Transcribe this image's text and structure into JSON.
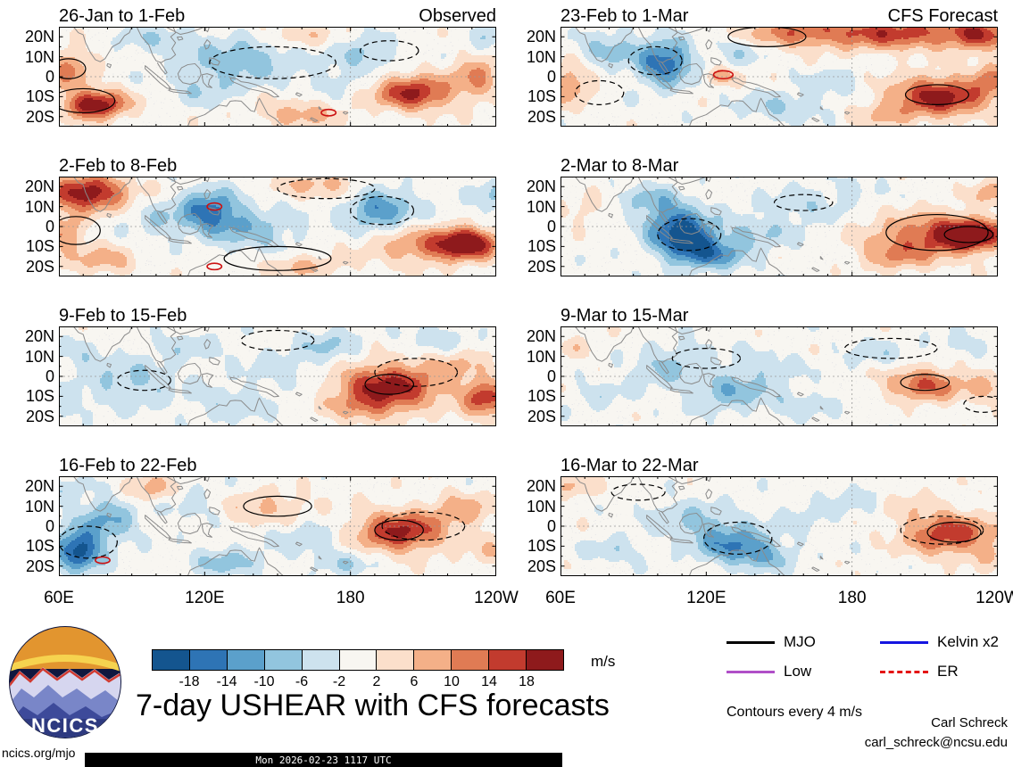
{
  "chart_data": {
    "type": "heatmap",
    "title": "7-day USHEAR with CFS forecasts",
    "units": "m/s",
    "contours_note": "Contours every 4 m/s",
    "column_headings": [
      "Observed",
      "CFS Forecast"
    ],
    "lat_ticks": [
      "20N",
      "10N",
      "0",
      "10S",
      "20S"
    ],
    "lat_values": [
      20,
      10,
      0,
      -10,
      -20
    ],
    "lon_ticks": [
      "60E",
      "120E",
      "180",
      "120W"
    ],
    "lon_values": [
      60,
      120,
      180,
      240
    ],
    "lon_range": [
      60,
      240
    ],
    "lat_range": [
      -25,
      25
    ],
    "colorbar": {
      "levels": [
        -18,
        -14,
        -10,
        -6,
        -2,
        2,
        6,
        10,
        14,
        18
      ],
      "labels": [
        "-18",
        "-14",
        "-10",
        "-6",
        "-2",
        "2",
        "6",
        "10",
        "14",
        "18"
      ],
      "colors": [
        "#14558f",
        "#2e74b5",
        "#5ba0cb",
        "#92c5de",
        "#cde2ee",
        "#f8f6f1",
        "#fbdfcb",
        "#f4b088",
        "#e07b54",
        "#c23b2e",
        "#8e1a1c"
      ]
    },
    "legend": [
      {
        "label": "MJO",
        "color": "#000000",
        "dash": false
      },
      {
        "label": "Kelvin x2",
        "color": "#1515e0",
        "dash": false
      },
      {
        "label": "Low",
        "color": "#b04fc8",
        "dash": false
      },
      {
        "label": "ER",
        "color": "#e41414",
        "dash": true
      }
    ],
    "panels": [
      {
        "title": "26-Jan to 1-Feb",
        "features": [
          [
            75,
            -14,
            9,
            5,
            22
          ],
          [
            64,
            4,
            7,
            7,
            11
          ],
          [
            100,
            19,
            12,
            5,
            -5
          ],
          [
            136,
            9,
            16,
            8,
            -9
          ],
          [
            120,
            -6,
            10,
            6,
            -5
          ],
          [
            158,
            -19,
            12,
            5,
            8
          ],
          [
            157,
            21,
            12,
            5,
            6
          ],
          [
            186,
            12,
            9,
            6,
            -7
          ],
          [
            206,
            -8,
            11,
            6,
            19
          ],
          [
            232,
            0,
            7,
            8,
            10
          ],
          [
            236,
            20,
            6,
            5,
            -6
          ],
          [
            175,
            -2,
            8,
            5,
            -4
          ]
        ],
        "contours": [
          [
            148,
            7,
            26,
            8,
            1,
            "k"
          ],
          [
            196,
            13,
            12,
            5,
            1,
            "k"
          ],
          [
            70,
            -12,
            13,
            6,
            0,
            "k"
          ],
          [
            64,
            4,
            7,
            5,
            0,
            "k"
          ],
          [
            171,
            -18,
            3,
            1.6,
            0,
            "r"
          ]
        ]
      },
      {
        "title": "2-Feb to 8-Feb",
        "features": [
          [
            72,
            17,
            11,
            6,
            22
          ],
          [
            62,
            -3,
            6,
            7,
            10
          ],
          [
            78,
            -17,
            10,
            5,
            8
          ],
          [
            122,
            8,
            9,
            7,
            -16
          ],
          [
            140,
            -2,
            13,
            7,
            -8
          ],
          [
            100,
            2,
            8,
            6,
            -5
          ],
          [
            162,
            22,
            11,
            4,
            6
          ],
          [
            177,
            17,
            9,
            5,
            5
          ],
          [
            191,
            9,
            10,
            7,
            -14
          ],
          [
            213,
            -10,
            16,
            6,
            12
          ],
          [
            228,
            -8,
            8,
            5,
            20
          ],
          [
            160,
            -20,
            12,
            4,
            7
          ],
          [
            238,
            14,
            6,
            6,
            -6
          ]
        ],
        "contours": [
          [
            67,
            -2,
            10,
            7,
            0,
            "k"
          ],
          [
            170,
            19,
            20,
            5,
            1,
            "k"
          ],
          [
            193,
            8,
            13,
            7,
            1,
            "k"
          ],
          [
            150,
            -16,
            22,
            6,
            0,
            "k"
          ],
          [
            124,
            10,
            3,
            1.8,
            0,
            "r"
          ],
          [
            124,
            -20,
            3,
            1.6,
            0,
            "r"
          ]
        ]
      },
      {
        "title": "9-Feb to 15-Feb",
        "features": [
          [
            90,
            -4,
            13,
            8,
            -7
          ],
          [
            70,
            9,
            9,
            6,
            -4
          ],
          [
            112,
            14,
            11,
            6,
            -4
          ],
          [
            130,
            -14,
            12,
            6,
            -5
          ],
          [
            152,
            4,
            12,
            8,
            -4
          ],
          [
            172,
            16,
            9,
            6,
            -6
          ],
          [
            196,
            -5,
            15,
            8,
            20
          ],
          [
            186,
            -16,
            10,
            5,
            7
          ],
          [
            226,
            6,
            9,
            6,
            6
          ],
          [
            236,
            -11,
            7,
            6,
            17
          ],
          [
            216,
            19,
            10,
            5,
            -5
          ],
          [
            62,
            -16,
            7,
            5,
            -4
          ]
        ],
        "contours": [
          [
            207,
            2,
            17,
            7,
            1,
            "k"
          ],
          [
            196,
            -4,
            10,
            5,
            0,
            "k"
          ],
          [
            150,
            18,
            15,
            5,
            1,
            "k"
          ],
          [
            95,
            -2,
            11,
            5,
            1,
            "k"
          ]
        ]
      },
      {
        "title": "16-Feb to 22-Feb",
        "features": [
          [
            68,
            -12,
            7,
            7,
            -20
          ],
          [
            80,
            4,
            9,
            8,
            -10
          ],
          [
            98,
            18,
            8,
            5,
            8
          ],
          [
            115,
            11,
            9,
            6,
            -5
          ],
          [
            129,
            -18,
            10,
            5,
            -8
          ],
          [
            146,
            9,
            14,
            6,
            7
          ],
          [
            162,
            -4,
            11,
            7,
            -5
          ],
          [
            200,
            -3,
            13,
            7,
            19
          ],
          [
            226,
            8,
            10,
            6,
            8
          ],
          [
            178,
            -18,
            10,
            5,
            -5
          ],
          [
            238,
            -14,
            7,
            5,
            6
          ],
          [
            62,
            18,
            5,
            4,
            -6
          ]
        ],
        "contours": [
          [
            72,
            -8,
            12,
            8,
            1,
            "k"
          ],
          [
            210,
            0,
            17,
            7,
            1,
            "k"
          ],
          [
            200,
            -2,
            10,
            5,
            0,
            "k"
          ],
          [
            150,
            10,
            14,
            5,
            0,
            "k"
          ],
          [
            78,
            -17,
            3,
            1.6,
            0,
            "r"
          ]
        ]
      },
      {
        "title": "23-Feb to 1-Mar",
        "features": [
          [
            197,
            22,
            28,
            6,
            16
          ],
          [
            152,
            22,
            14,
            5,
            8
          ],
          [
            232,
            21,
            8,
            5,
            12
          ],
          [
            103,
            7,
            8,
            8,
            -17
          ],
          [
            80,
            14,
            8,
            6,
            -8
          ],
          [
            64,
            -4,
            6,
            7,
            10
          ],
          [
            126,
            0,
            5,
            3,
            9
          ],
          [
            150,
            -15,
            12,
            5,
            -6
          ],
          [
            172,
            -4,
            9,
            6,
            -4
          ],
          [
            216,
            -10,
            14,
            7,
            20
          ],
          [
            238,
            -1,
            6,
            6,
            10
          ],
          [
            135,
            14,
            7,
            5,
            -6
          ],
          [
            192,
            -19,
            9,
            4,
            6
          ]
        ],
        "contours": [
          [
            99,
            8,
            11,
            7,
            1,
            "k"
          ],
          [
            145,
            20,
            16,
            5,
            0,
            "k"
          ],
          [
            127,
            1,
            4,
            2,
            0,
            "r"
          ],
          [
            76,
            -8,
            10,
            6,
            1,
            "k"
          ],
          [
            215,
            -9,
            13,
            5,
            0,
            "k"
          ]
        ]
      },
      {
        "title": "2-Mar to 8-Mar",
        "features": [
          [
            112,
            -7,
            9,
            7,
            -20
          ],
          [
            106,
            4,
            9,
            7,
            -11
          ],
          [
            124,
            -15,
            10,
            5,
            -10
          ],
          [
            96,
            14,
            8,
            5,
            -6
          ],
          [
            140,
            -4,
            12,
            6,
            -6
          ],
          [
            160,
            10,
            12,
            6,
            -5
          ],
          [
            213,
            -5,
            17,
            8,
            14
          ],
          [
            229,
            -4,
            9,
            5,
            20
          ],
          [
            196,
            -15,
            10,
            5,
            7
          ],
          [
            238,
            17,
            6,
            5,
            8
          ],
          [
            70,
            8,
            7,
            5,
            4
          ],
          [
            182,
            18,
            8,
            4,
            -4
          ]
        ],
        "contours": [
          [
            215,
            -3,
            21,
            9,
            0,
            "k"
          ],
          [
            228,
            -4,
            10,
            4,
            0,
            "k"
          ],
          [
            113,
            -4,
            13,
            8,
            1,
            "k"
          ],
          [
            160,
            12,
            12,
            4,
            1,
            "k"
          ]
        ]
      },
      {
        "title": "9-Mar to 15-Mar",
        "features": [
          [
            130,
            -7,
            13,
            7,
            -9
          ],
          [
            100,
            3,
            10,
            6,
            -6
          ],
          [
            114,
            12,
            10,
            5,
            -4
          ],
          [
            76,
            -10,
            8,
            5,
            -4
          ],
          [
            160,
            -14,
            10,
            5,
            -4
          ],
          [
            210,
            -4,
            11,
            6,
            14
          ],
          [
            236,
            -6,
            7,
            5,
            7
          ],
          [
            190,
            11,
            11,
            5,
            -4
          ],
          [
            224,
            16,
            8,
            4,
            -4
          ],
          [
            66,
            14,
            6,
            4,
            4
          ],
          [
            146,
            6,
            9,
            5,
            -4
          ]
        ],
        "contours": [
          [
            210,
            -3,
            10,
            4,
            0,
            "k"
          ],
          [
            196,
            14,
            19,
            5,
            1,
            "k"
          ],
          [
            234,
            -14,
            8,
            4,
            1,
            "k"
          ],
          [
            120,
            9,
            14,
            5,
            1,
            "k"
          ]
        ]
      },
      {
        "title": "16-Mar to 22-Mar",
        "features": [
          [
            130,
            -8,
            11,
            7,
            -13
          ],
          [
            144,
            -15,
            9,
            5,
            -8
          ],
          [
            116,
            4,
            9,
            6,
            -6
          ],
          [
            82,
            -12,
            8,
            5,
            -5
          ],
          [
            66,
            20,
            7,
            4,
            6
          ],
          [
            160,
            4,
            9,
            5,
            -4
          ],
          [
            220,
            -4,
            13,
            7,
            17
          ],
          [
            204,
            11,
            9,
            5,
            4
          ],
          [
            238,
            -15,
            6,
            4,
            5
          ],
          [
            182,
            14,
            9,
            5,
            -4
          ],
          [
            98,
            6,
            7,
            5,
            -3
          ]
        ],
        "contours": [
          [
            133,
            -6,
            14,
            8,
            1,
            "k"
          ],
          [
            222,
            -3,
            11,
            5,
            0,
            "k"
          ],
          [
            217,
            -2,
            17,
            7,
            1,
            "k"
          ],
          [
            92,
            17,
            11,
            4,
            1,
            "k"
          ]
        ]
      }
    ]
  },
  "footer": {
    "site": "ncics.org/mjo",
    "timestamp": "Mon 2026-02-23 1117 UTC",
    "credit_name": "Carl Schreck",
    "credit_email": "carl_schreck@ncsu.edu",
    "logo_text": "NCICS"
  }
}
